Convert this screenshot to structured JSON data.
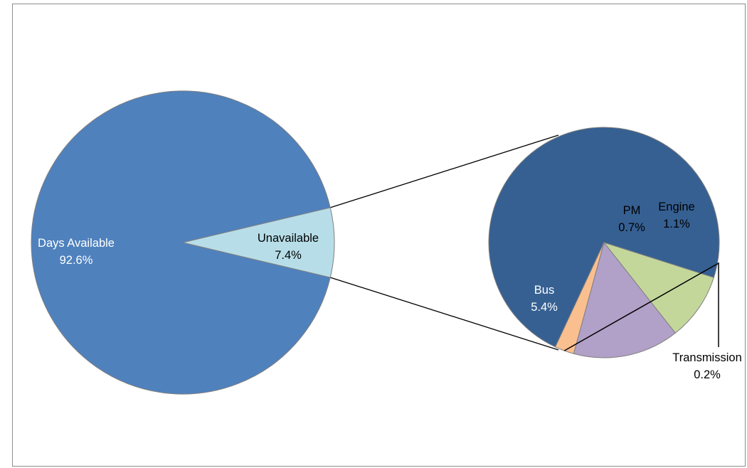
{
  "chart_data": {
    "type": "pie",
    "subtype": "pie-of-pie",
    "title": "",
    "slices": [
      {
        "label": "Days Available",
        "value": 92.6,
        "value_label": "92.6%",
        "color": "#4f81bd",
        "label_color": "#ffffff"
      },
      {
        "label": "Unavailable",
        "value": 7.4,
        "value_label": "7.4%",
        "color": "#b7dee8",
        "label_color": "#000000"
      }
    ],
    "breakdown_of": "Unavailable",
    "secondary_slices": [
      {
        "label": "Bus",
        "value": 5.4,
        "value_label": "5.4%",
        "color": "#366092",
        "label_color": "#ffffff"
      },
      {
        "label": "PM",
        "value": 0.7,
        "value_label": "0.7%",
        "color": "#c4d79b",
        "label_color": "#000000"
      },
      {
        "label": "Engine",
        "value": 1.1,
        "value_label": "1.1%",
        "color": "#b1a0c7",
        "label_color": "#000000"
      },
      {
        "label": "Transmission",
        "value": 0.2,
        "value_label": "0.2%",
        "color": "#fabf8f",
        "label_color": "#000000"
      }
    ]
  }
}
